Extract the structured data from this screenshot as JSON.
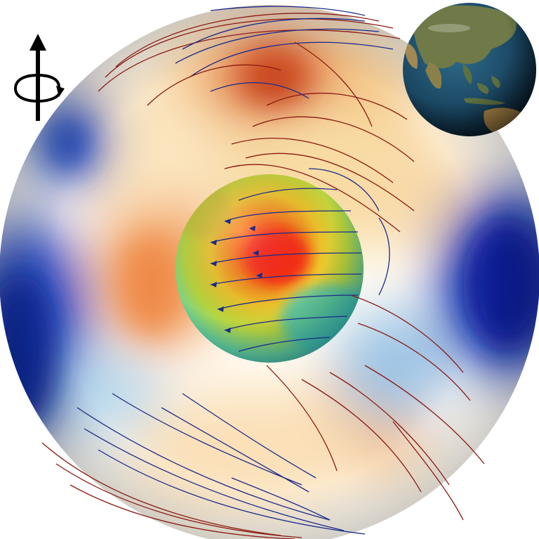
{
  "legend": {
    "rotation_symbol": "Ω",
    "rotation_icon": "rotation-axis-arrow-icon"
  },
  "inset": {
    "icon": "earth-globe-icon"
  },
  "colors": {
    "warm_field": "#d9501e",
    "cold_field": "#0a2a9c",
    "neutral_field": "#ffffff",
    "core_hot": "#ff2a10",
    "core_cool": "#2fc7c0",
    "streamline_red": "#8b1a12",
    "streamline_blue": "#1c2a8a"
  }
}
